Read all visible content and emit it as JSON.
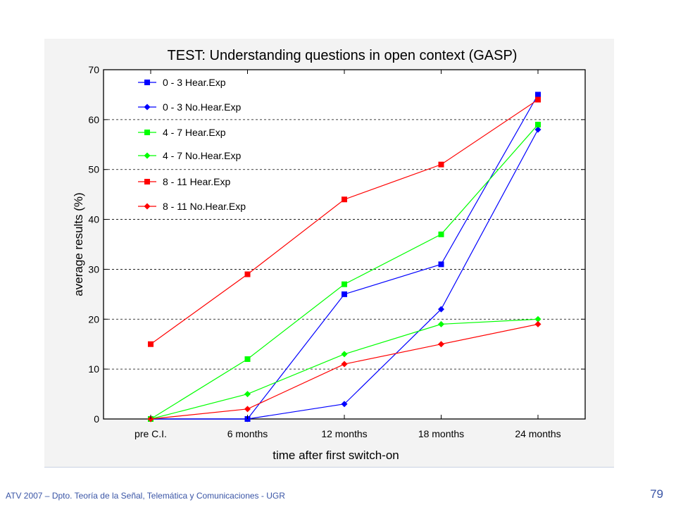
{
  "chart_data": {
    "type": "line",
    "title": "TEST: Understanding questions in open context (GASP)",
    "xlabel": "time after first switch-on",
    "ylabel": "average results (%)",
    "categories": [
      "pre C.I.",
      "6 months",
      "12 months",
      "18 months",
      "24 months"
    ],
    "ylim": [
      0,
      70
    ],
    "yticks": [
      0,
      10,
      20,
      30,
      40,
      50,
      60,
      70
    ],
    "grid": "horizontal dashed",
    "legend_position": "top-left",
    "series": [
      {
        "name": "0 - 3 Hear.Exp",
        "color": "#0000ff",
        "marker": "square",
        "values": [
          0,
          0,
          25,
          31,
          65
        ]
      },
      {
        "name": "0 - 3 No.Hear.Exp",
        "color": "#0000ff",
        "marker": "diamond",
        "values": [
          0,
          0,
          3,
          22,
          58
        ]
      },
      {
        "name": "4 - 7 Hear.Exp",
        "color": "#00ff00",
        "marker": "square",
        "values": [
          0,
          12,
          27,
          37,
          59
        ]
      },
      {
        "name": "4 - 7 No.Hear.Exp",
        "color": "#00ff00",
        "marker": "diamond",
        "values": [
          0,
          5,
          13,
          19,
          20
        ]
      },
      {
        "name": "8 - 11 Hear.Exp",
        "color": "#ff0000",
        "marker": "square",
        "values": [
          15,
          29,
          44,
          51,
          64
        ]
      },
      {
        "name": "8 - 11 No.Hear.Exp",
        "color": "#ff0000",
        "marker": "diamond",
        "values": [
          0,
          2,
          11,
          15,
          19
        ]
      }
    ]
  },
  "footer": {
    "text": "ATV 2007 – Dpto. Teoría de la Señal, Telemática y Comunicaciones - UGR",
    "page_number": "79"
  }
}
